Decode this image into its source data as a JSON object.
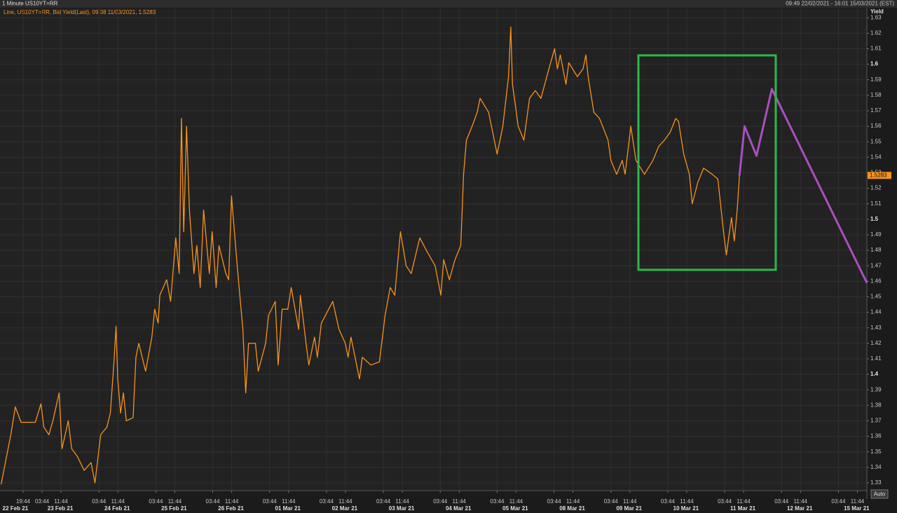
{
  "chart_data": {
    "type": "line",
    "title": "1 Minute US10YT=RR",
    "date_range": "09:49 22/02/2021 - 16:01 15/03/2021 (EST)",
    "subtitle": "Line, US10YT=RR, Bid Yield(Last), 09:38 11/03/2021, 1.5283",
    "y_label": "Yield",
    "last_value": 1.5283,
    "auto_button": "Auto",
    "grid": true,
    "xlim": [
      0.26,
      15.5
    ],
    "ylim": [
      1.325,
      1.636
    ],
    "yticks": [
      1.33,
      1.34,
      1.35,
      1.36,
      1.37,
      1.38,
      1.39,
      1.4,
      1.41,
      1.42,
      1.43,
      1.44,
      1.45,
      1.46,
      1.47,
      1.48,
      1.49,
      1.5,
      1.51,
      1.52,
      1.53,
      1.54,
      1.55,
      1.56,
      1.57,
      1.58,
      1.59,
      1.6,
      1.61,
      1.62,
      1.63
    ],
    "xticks": [
      {
        "value": 0.667,
        "label": "19:44"
      },
      {
        "value": 1,
        "label": "03:44"
      },
      {
        "value": 1.333,
        "label": "11:44"
      },
      {
        "value": 2,
        "label": "03:44"
      },
      {
        "value": 2.333,
        "label": "11:44"
      },
      {
        "value": 3,
        "label": "03:44"
      },
      {
        "value": 3.333,
        "label": "11:44"
      },
      {
        "value": 4,
        "label": "03:44"
      },
      {
        "value": 4.333,
        "label": "11:44"
      },
      {
        "value": 5,
        "label": "03:44"
      },
      {
        "value": 5.333,
        "label": "11:44"
      },
      {
        "value": 6,
        "label": "03:44"
      },
      {
        "value": 6.333,
        "label": "11:44"
      },
      {
        "value": 7,
        "label": "03:44"
      },
      {
        "value": 7.333,
        "label": "11:44"
      },
      {
        "value": 8,
        "label": "03:44"
      },
      {
        "value": 8.333,
        "label": "11:44"
      },
      {
        "value": 9,
        "label": "03:44"
      },
      {
        "value": 9.333,
        "label": "11:44"
      },
      {
        "value": 10,
        "label": "03:44"
      },
      {
        "value": 10.333,
        "label": "11:44"
      },
      {
        "value": 11,
        "label": "03:44"
      },
      {
        "value": 11.333,
        "label": "11:44"
      },
      {
        "value": 12,
        "label": "03:44"
      },
      {
        "value": 12.333,
        "label": "11:44"
      },
      {
        "value": 13,
        "label": "03:44"
      },
      {
        "value": 13.333,
        "label": "11:44"
      },
      {
        "value": 14,
        "label": "03:44"
      },
      {
        "value": 14.333,
        "label": "11:44"
      },
      {
        "value": 15,
        "label": "03:44"
      },
      {
        "value": 15.333,
        "label": "11:44"
      }
    ],
    "xdate_ticks": [
      {
        "value": 0.53,
        "label": "22 Feb 21"
      },
      {
        "value": 1.32,
        "label": "23 Feb 21"
      },
      {
        "value": 2.32,
        "label": "24 Feb 21"
      },
      {
        "value": 3.32,
        "label": "25 Feb 21"
      },
      {
        "value": 4.32,
        "label": "26 Feb 21"
      },
      {
        "value": 5.32,
        "label": "01 Mar 21"
      },
      {
        "value": 6.32,
        "label": "02 Mar 21"
      },
      {
        "value": 7.32,
        "label": "03 Mar 21"
      },
      {
        "value": 8.32,
        "label": "04 Mar 21"
      },
      {
        "value": 9.32,
        "label": "05 Mar 21"
      },
      {
        "value": 10.32,
        "label": "08 Mar 21"
      },
      {
        "value": 11.32,
        "label": "09 Mar 21"
      },
      {
        "value": 12.32,
        "label": "10 Mar 21"
      },
      {
        "value": 13.32,
        "label": "11 Mar 21"
      },
      {
        "value": 14.32,
        "label": "12 Mar 21"
      },
      {
        "value": 15.32,
        "label": "15 Mar 21"
      }
    ],
    "series": [
      {
        "color": "#f7931e",
        "x": [
          0.28,
          0.45,
          0.53,
          0.63,
          0.88,
          0.98,
          1.03,
          1.12,
          1.19,
          1.3,
          1.35,
          1.46,
          1.52,
          1.62,
          1.74,
          1.86,
          1.93,
          2.03,
          2.14,
          2.2,
          2.26,
          2.3,
          2.33,
          2.38,
          2.43,
          2.48,
          2.6,
          2.65,
          2.7,
          2.82,
          2.93,
          2.98,
          3.04,
          3.07,
          3.19,
          3.26,
          3.35,
          3.41,
          3.45,
          3.49,
          3.54,
          3.59,
          3.67,
          3.72,
          3.78,
          3.84,
          3.94,
          3.99,
          4.06,
          4.11,
          4.23,
          4.28,
          4.33,
          4.43,
          4.53,
          4.58,
          4.63,
          4.75,
          4.8,
          4.93,
          4.98,
          5.1,
          5.15,
          5.22,
          5.32,
          5.38,
          5.51,
          5.54,
          5.64,
          5.69,
          5.79,
          5.84,
          5.91,
          6.11,
          6.22,
          6.33,
          6.38,
          6.43,
          6.58,
          6.63,
          6.78,
          6.93,
          7.03,
          7.12,
          7.2,
          7.3,
          7.4,
          7.49,
          7.64,
          7.77,
          7.91,
          8.01,
          8.06,
          8.16,
          8.26,
          8.36,
          8.41,
          8.46,
          8.56,
          8.65,
          8.7,
          8.85,
          9.0,
          9.1,
          9.2,
          9.24,
          9.27,
          9.37,
          9.47,
          9.57,
          9.67,
          9.77,
          9.91,
          10.01,
          10.06,
          10.11,
          10.21,
          10.26,
          10.41,
          10.51,
          10.56,
          10.6,
          10.7,
          10.8,
          10.95,
          11.0,
          11.1,
          11.2,
          11.25,
          11.35,
          11.44,
          11.59,
          11.74,
          11.84,
          11.94,
          12.04,
          12.14,
          12.19,
          12.28,
          12.38,
          12.43,
          12.53,
          12.63,
          12.78,
          12.88,
          12.98,
          13.03,
          13.07,
          13.12,
          13.17,
          13.22,
          13.26
        ],
        "values": [
          1.329,
          1.361,
          1.379,
          1.369,
          1.369,
          1.381,
          1.366,
          1.361,
          1.37,
          1.388,
          1.352,
          1.37,
          1.352,
          1.347,
          1.338,
          1.343,
          1.33,
          1.361,
          1.366,
          1.375,
          1.406,
          1.431,
          1.397,
          1.375,
          1.388,
          1.37,
          1.372,
          1.411,
          1.42,
          1.402,
          1.424,
          1.442,
          1.433,
          1.451,
          1.461,
          1.447,
          1.488,
          1.465,
          1.565,
          1.492,
          1.56,
          1.506,
          1.465,
          1.483,
          1.456,
          1.506,
          1.465,
          1.492,
          1.456,
          1.483,
          1.465,
          1.461,
          1.515,
          1.47,
          1.429,
          1.388,
          1.42,
          1.42,
          1.402,
          1.42,
          1.438,
          1.447,
          1.406,
          1.442,
          1.442,
          1.456,
          1.429,
          1.451,
          1.42,
          1.406,
          1.424,
          1.411,
          1.433,
          1.447,
          1.429,
          1.42,
          1.411,
          1.424,
          1.397,
          1.411,
          1.406,
          1.408,
          1.438,
          1.456,
          1.451,
          1.492,
          1.47,
          1.465,
          1.488,
          1.479,
          1.47,
          1.451,
          1.474,
          1.461,
          1.474,
          1.483,
          1.529,
          1.551,
          1.56,
          1.569,
          1.578,
          1.569,
          1.542,
          1.56,
          1.592,
          1.624,
          1.587,
          1.56,
          1.551,
          1.578,
          1.583,
          1.578,
          1.597,
          1.61,
          1.597,
          1.606,
          1.587,
          1.601,
          1.592,
          1.597,
          1.606,
          1.592,
          1.569,
          1.565,
          1.551,
          1.538,
          1.529,
          1.538,
          1.529,
          1.56,
          1.538,
          1.529,
          1.538,
          1.547,
          1.551,
          1.556,
          1.565,
          1.563,
          1.542,
          1.529,
          1.51,
          1.524,
          1.533,
          1.529,
          1.526,
          1.492,
          1.477,
          1.488,
          1.501,
          1.486,
          1.506,
          1.528
        ]
      },
      {
        "color": "#a94fbf",
        "x": [
          13.26,
          13.35,
          13.56,
          13.83,
          15.5
        ],
        "values": [
          1.528,
          1.56,
          1.541,
          1.584,
          1.459
        ]
      }
    ]
  }
}
